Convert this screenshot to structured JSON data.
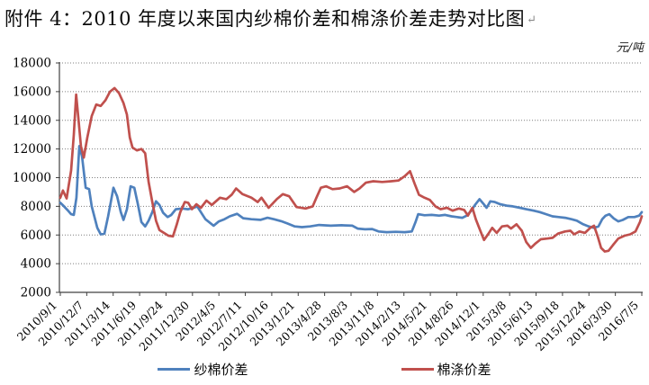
{
  "document": {
    "title": "附件 4：2010 年度以来国内纱棉价差和棉涤价差走势对比图",
    "return_mark": "↵"
  },
  "chart_data": {
    "type": "line",
    "title": "2010 年度以来国内纱棉价差和棉涤价差走势对比图",
    "unit_label": "元/吨",
    "ylabel": "元/吨",
    "y_min": 2000,
    "y_max": 18000,
    "y_step": 2000,
    "grid": "dotted horizontal gridlines",
    "legend_position": "bottom-center",
    "x_note": "point x-coordinates are in tick units: 0 = 2010/9/1 ... 22 = 2016/7/5 (weekly data, values in 元/吨)",
    "x_tick_labels": [
      "2010/9/1",
      "2010/12/7",
      "2011/3/14",
      "2011/6/19",
      "2011/9/24",
      "2011/12/30",
      "2012/4/5",
      "2012/7/11",
      "2012/10/16",
      "2013/1/21",
      "2013/4/28",
      "2013/8/3",
      "2013/11/8",
      "2014/2/13",
      "2014/5/21",
      "2014/8/26",
      "2014/12/1",
      "2015/3/8",
      "2015/6/13",
      "2015/9/18",
      "2015/12/24",
      "2016/3/30",
      "2016/7/5"
    ],
    "series": [
      {
        "id": "yarn-cotton-spread",
        "name": "纱棉价差",
        "color": "#4F81BD",
        "points": [
          [
            0,
            8250
          ],
          [
            0.14,
            8000
          ],
          [
            0.27,
            7750
          ],
          [
            0.41,
            7450
          ],
          [
            0.51,
            7400
          ],
          [
            0.61,
            8600
          ],
          [
            0.72,
            12200
          ],
          [
            0.82,
            11500
          ],
          [
            0.96,
            9300
          ],
          [
            1.09,
            9200
          ],
          [
            1.19,
            8000
          ],
          [
            1.3,
            7200
          ],
          [
            1.4,
            6500
          ],
          [
            1.53,
            6050
          ],
          [
            1.67,
            6100
          ],
          [
            1.81,
            7300
          ],
          [
            1.91,
            8300
          ],
          [
            2.01,
            9300
          ],
          [
            2.15,
            8700
          ],
          [
            2.29,
            7600
          ],
          [
            2.39,
            7050
          ],
          [
            2.52,
            7800
          ],
          [
            2.66,
            9400
          ],
          [
            2.8,
            9300
          ],
          [
            2.93,
            8200
          ],
          [
            3.07,
            6900
          ],
          [
            3.21,
            6600
          ],
          [
            3.34,
            7000
          ],
          [
            3.48,
            7600
          ],
          [
            3.62,
            8350
          ],
          [
            3.75,
            8100
          ],
          [
            3.89,
            7550
          ],
          [
            4.06,
            7250
          ],
          [
            4.2,
            7400
          ],
          [
            4.37,
            7800
          ],
          [
            4.6,
            7850
          ],
          [
            4.84,
            7800
          ],
          [
            5.05,
            7900
          ],
          [
            5.18,
            8000
          ],
          [
            5.35,
            7500
          ],
          [
            5.49,
            7100
          ],
          [
            5.63,
            6900
          ],
          [
            5.8,
            6650
          ],
          [
            6,
            6950
          ],
          [
            6.21,
            7100
          ],
          [
            6.41,
            7300
          ],
          [
            6.69,
            7480
          ],
          [
            6.92,
            7170
          ],
          [
            7.23,
            7100
          ],
          [
            7.57,
            7060
          ],
          [
            7.84,
            7200
          ],
          [
            8.08,
            7100
          ],
          [
            8.36,
            6960
          ],
          [
            8.6,
            6800
          ],
          [
            8.87,
            6600
          ],
          [
            9.14,
            6550
          ],
          [
            9.45,
            6600
          ],
          [
            9.79,
            6700
          ],
          [
            10.23,
            6650
          ],
          [
            10.64,
            6680
          ],
          [
            11.05,
            6650
          ],
          [
            11.25,
            6450
          ],
          [
            11.53,
            6400
          ],
          [
            11.8,
            6420
          ],
          [
            12.04,
            6250
          ],
          [
            12.35,
            6200
          ],
          [
            12.69,
            6220
          ],
          [
            13.03,
            6200
          ],
          [
            13.3,
            6250
          ],
          [
            13.44,
            6900
          ],
          [
            13.54,
            7450
          ],
          [
            13.78,
            7380
          ],
          [
            14.05,
            7400
          ],
          [
            14.33,
            7350
          ],
          [
            14.56,
            7400
          ],
          [
            14.8,
            7300
          ],
          [
            15.01,
            7250
          ],
          [
            15.21,
            7200
          ],
          [
            15.38,
            7350
          ],
          [
            15.55,
            7700
          ],
          [
            15.69,
            8100
          ],
          [
            15.86,
            8500
          ],
          [
            16,
            8200
          ],
          [
            16.13,
            7900
          ],
          [
            16.27,
            8350
          ],
          [
            16.44,
            8300
          ],
          [
            16.64,
            8150
          ],
          [
            16.88,
            8050
          ],
          [
            17.12,
            8000
          ],
          [
            17.39,
            7900
          ],
          [
            17.63,
            7800
          ],
          [
            17.91,
            7700
          ],
          [
            18.14,
            7600
          ],
          [
            18.38,
            7450
          ],
          [
            18.62,
            7300
          ],
          [
            18.86,
            7250
          ],
          [
            19.1,
            7200
          ],
          [
            19.34,
            7100
          ],
          [
            19.54,
            7000
          ],
          [
            19.78,
            6750
          ],
          [
            19.99,
            6600
          ],
          [
            20.19,
            6500
          ],
          [
            20.36,
            6600
          ],
          [
            20.5,
            7100
          ],
          [
            20.63,
            7350
          ],
          [
            20.77,
            7450
          ],
          [
            20.94,
            7150
          ],
          [
            21.11,
            6950
          ],
          [
            21.28,
            7050
          ],
          [
            21.49,
            7250
          ],
          [
            21.72,
            7250
          ],
          [
            21.9,
            7350
          ],
          [
            22,
            7600
          ]
        ]
      },
      {
        "id": "cotton-polyester-spread",
        "name": "棉涤价差",
        "color": "#C0504D",
        "points": [
          [
            0,
            8600
          ],
          [
            0.1,
            9100
          ],
          [
            0.24,
            8550
          ],
          [
            0.41,
            10500
          ],
          [
            0.51,
            13000
          ],
          [
            0.6,
            15800
          ],
          [
            0.68,
            14200
          ],
          [
            0.78,
            12200
          ],
          [
            0.89,
            11400
          ],
          [
            1.02,
            12800
          ],
          [
            1.19,
            14300
          ],
          [
            1.36,
            15100
          ],
          [
            1.53,
            15000
          ],
          [
            1.71,
            15400
          ],
          [
            1.88,
            16000
          ],
          [
            2.05,
            16250
          ],
          [
            2.22,
            15900
          ],
          [
            2.39,
            15200
          ],
          [
            2.52,
            14400
          ],
          [
            2.63,
            12800
          ],
          [
            2.73,
            12100
          ],
          [
            2.9,
            11900
          ],
          [
            3.07,
            12000
          ],
          [
            3.21,
            11700
          ],
          [
            3.34,
            9700
          ],
          [
            3.48,
            8300
          ],
          [
            3.62,
            7000
          ],
          [
            3.75,
            6350
          ],
          [
            3.92,
            6150
          ],
          [
            4.09,
            5950
          ],
          [
            4.26,
            5900
          ],
          [
            4.4,
            6700
          ],
          [
            4.54,
            7600
          ],
          [
            4.71,
            8300
          ],
          [
            4.84,
            8250
          ],
          [
            4.98,
            7800
          ],
          [
            5.15,
            8150
          ],
          [
            5.32,
            7900
          ],
          [
            5.53,
            8400
          ],
          [
            5.73,
            8100
          ],
          [
            6.04,
            8600
          ],
          [
            6.28,
            8500
          ],
          [
            6.48,
            8800
          ],
          [
            6.65,
            9250
          ],
          [
            6.89,
            8850
          ],
          [
            7.23,
            8600
          ],
          [
            7.47,
            8300
          ],
          [
            7.61,
            8600
          ],
          [
            7.88,
            7900
          ],
          [
            8.19,
            8500
          ],
          [
            8.42,
            8850
          ],
          [
            8.66,
            8700
          ],
          [
            8.94,
            7950
          ],
          [
            9.28,
            7850
          ],
          [
            9.55,
            8000
          ],
          [
            9.69,
            8600
          ],
          [
            9.86,
            9300
          ],
          [
            10.06,
            9400
          ],
          [
            10.3,
            9200
          ],
          [
            10.57,
            9250
          ],
          [
            10.85,
            9400
          ],
          [
            11.12,
            9000
          ],
          [
            11.32,
            9250
          ],
          [
            11.56,
            9650
          ],
          [
            11.84,
            9750
          ],
          [
            12.18,
            9700
          ],
          [
            12.52,
            9750
          ],
          [
            12.79,
            9800
          ],
          [
            13.03,
            10100
          ],
          [
            13.23,
            10450
          ],
          [
            13.4,
            9600
          ],
          [
            13.57,
            8800
          ],
          [
            13.78,
            8600
          ],
          [
            13.98,
            8450
          ],
          [
            14.19,
            8000
          ],
          [
            14.39,
            7800
          ],
          [
            14.63,
            7900
          ],
          [
            14.84,
            7700
          ],
          [
            15.08,
            7850
          ],
          [
            15.28,
            7750
          ],
          [
            15.42,
            7350
          ],
          [
            15.59,
            7900
          ],
          [
            15.72,
            7100
          ],
          [
            15.89,
            6300
          ],
          [
            16.03,
            5650
          ],
          [
            16.2,
            6100
          ],
          [
            16.34,
            6500
          ],
          [
            16.51,
            6150
          ],
          [
            16.71,
            6600
          ],
          [
            16.92,
            6650
          ],
          [
            17.05,
            6450
          ],
          [
            17.26,
            6750
          ],
          [
            17.46,
            6300
          ],
          [
            17.63,
            5500
          ],
          [
            17.8,
            5100
          ],
          [
            17.97,
            5400
          ],
          [
            18.18,
            5700
          ],
          [
            18.42,
            5750
          ],
          [
            18.62,
            5800
          ],
          [
            18.83,
            6100
          ],
          [
            19.1,
            6250
          ],
          [
            19.3,
            6300
          ],
          [
            19.44,
            6050
          ],
          [
            19.64,
            6250
          ],
          [
            19.85,
            6150
          ],
          [
            20.05,
            6500
          ],
          [
            20.19,
            6650
          ],
          [
            20.33,
            5900
          ],
          [
            20.46,
            5100
          ],
          [
            20.6,
            4850
          ],
          [
            20.74,
            4900
          ],
          [
            20.91,
            5300
          ],
          [
            21.11,
            5750
          ],
          [
            21.35,
            5950
          ],
          [
            21.56,
            6050
          ],
          [
            21.76,
            6250
          ],
          [
            21.93,
            6900
          ],
          [
            22,
            7300
          ]
        ]
      }
    ]
  }
}
